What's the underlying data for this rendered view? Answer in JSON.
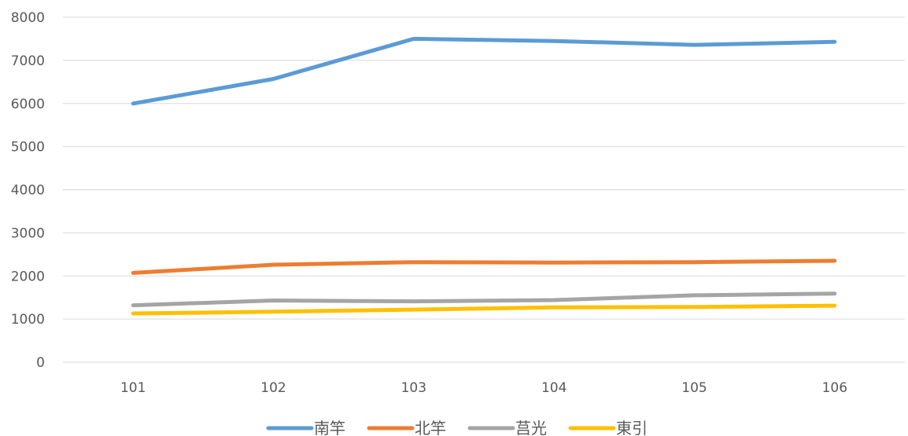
{
  "chart_data": {
    "type": "line",
    "title": "",
    "xlabel": "",
    "ylabel": "",
    "categories": [
      "101",
      "102",
      "103",
      "104",
      "105",
      "106"
    ],
    "ylim": [
      0,
      8000
    ],
    "yticks": [
      0,
      1000,
      2000,
      3000,
      4000,
      5000,
      6000,
      7000,
      8000
    ],
    "grid": "horizontal",
    "legend_position": "bottom",
    "series": [
      {
        "name": "南竿",
        "color": "#5B9BD5",
        "values": [
          6000,
          6570,
          7500,
          7450,
          7360,
          7430
        ]
      },
      {
        "name": "北竿",
        "color": "#ED7D31",
        "values": [
          2070,
          2260,
          2320,
          2310,
          2320,
          2350
        ]
      },
      {
        "name": "莒光",
        "color": "#A5A5A5",
        "values": [
          1320,
          1430,
          1410,
          1440,
          1550,
          1590
        ]
      },
      {
        "name": "東引",
        "color": "#FFC000",
        "values": [
          1130,
          1170,
          1220,
          1270,
          1280,
          1310
        ]
      }
    ]
  }
}
